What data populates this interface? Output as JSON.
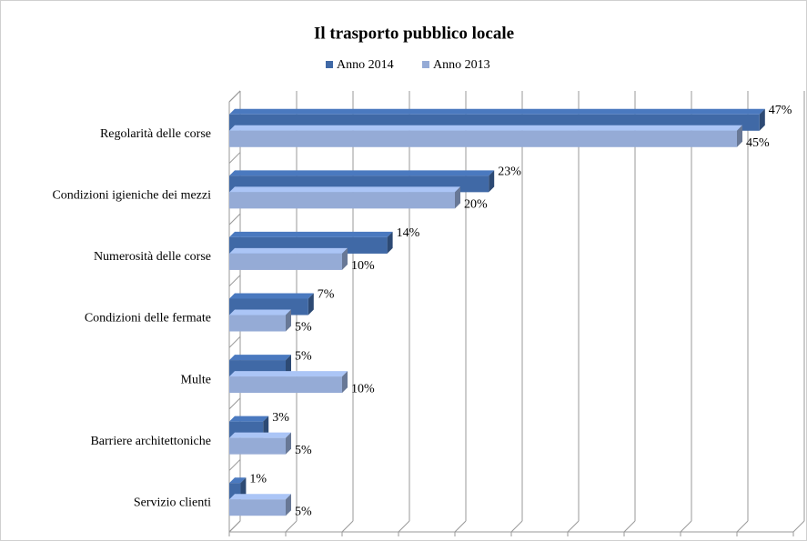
{
  "chart_data": {
    "type": "bar",
    "orientation": "horizontal",
    "title": "Il trasporto pubblico locale",
    "categories": [
      "Regolarità delle corse",
      "Condizioni igieniche dei mezzi",
      "Numerosità delle corse",
      "Condizioni delle fermate",
      "Multe",
      "Barriere architettoniche",
      "Servizio clienti"
    ],
    "series": [
      {
        "name": "Anno 2014",
        "color": "#4069a6",
        "values": [
          47,
          23,
          14,
          7,
          5,
          3,
          1
        ],
        "value_labels": [
          "47%",
          "23%",
          "14%",
          "7%",
          "5%",
          "3%",
          "1%"
        ]
      },
      {
        "name": "Anno 2013",
        "color": "#95abd6",
        "values": [
          45,
          20,
          10,
          5,
          10,
          5,
          5
        ],
        "value_labels": [
          "45%",
          "20%",
          "10%",
          "5%",
          "10%",
          "5%",
          "5%"
        ]
      }
    ],
    "xlim": [
      0,
      50
    ],
    "xticks": [
      0,
      5,
      10,
      15,
      20,
      25,
      30,
      35,
      40,
      45,
      50
    ],
    "grid": true,
    "legend": "top"
  }
}
